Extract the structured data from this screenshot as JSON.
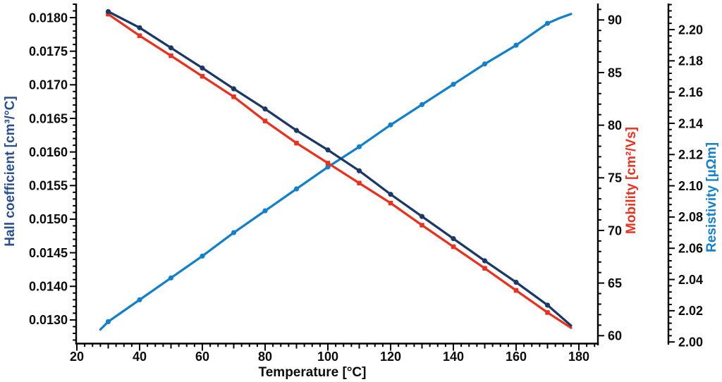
{
  "chart_data": {
    "type": "line",
    "title": "",
    "background": "#ffffff",
    "x_axis": {
      "title": "Temperature [°C]",
      "tick_labels": [
        "20",
        "40",
        "60",
        "80",
        "100",
        "120",
        "140",
        "160",
        "180"
      ],
      "range": [
        20,
        185.5
      ],
      "major_step": 20,
      "medium_step": 10,
      "minor_step": 2.5,
      "grid": "off"
    },
    "axes": {
      "hall": {
        "title": "Hall coefficient [cm³/°C]",
        "side": "left",
        "title_color": "#2b4f8e",
        "tick_labels": [
          "0.0180",
          "0.0175",
          "0.0170",
          "0.0165",
          "0.0160",
          "0.0155",
          "0.0150",
          "0.0145",
          "0.0140",
          "0.0130"
        ]
      },
      "mobility": {
        "title": "Mobility [cm²/Vs]",
        "side": "right-inner",
        "title_color": "#e53322",
        "tick_labels": [
          "90",
          "85",
          "80",
          "75",
          "70",
          "65",
          "60"
        ]
      },
      "resistivity": {
        "title": "Resistivity [µΩm]",
        "side": "right-outer",
        "title_color": "#1480c8",
        "tick_labels": [
          "2.20",
          "2.18",
          "2.16",
          "2.14",
          "2.12",
          "2.10",
          "2.08",
          "2.06",
          "2.04",
          "2.02",
          "2.00"
        ]
      }
    },
    "series": [
      {
        "name": "Resistivity",
        "axis": "resistivity",
        "color": "#1480c8",
        "marker": "circle",
        "line_points": [
          [
            27.5,
            2.008
          ],
          [
            30,
            2.013
          ],
          [
            40,
            2.027
          ],
          [
            50,
            2.041
          ],
          [
            60,
            2.055
          ],
          [
            70,
            2.07
          ],
          [
            80,
            2.084
          ],
          [
            90,
            2.098
          ],
          [
            100,
            2.112
          ],
          [
            110,
            2.125
          ],
          [
            120,
            2.139
          ],
          [
            130,
            2.152
          ],
          [
            140,
            2.165
          ],
          [
            150,
            2.178
          ],
          [
            160,
            2.19
          ],
          [
            170,
            2.204
          ],
          [
            174,
            2.2075
          ],
          [
            177.5,
            2.21
          ]
        ],
        "marker_points": [
          [
            30,
            2.013
          ],
          [
            40,
            2.027
          ],
          [
            50,
            2.041
          ],
          [
            60,
            2.055
          ],
          [
            70,
            2.07
          ],
          [
            80,
            2.084
          ],
          [
            90,
            2.098
          ],
          [
            100,
            2.112
          ],
          [
            110,
            2.125
          ],
          [
            120,
            2.139
          ],
          [
            130,
            2.152
          ],
          [
            140,
            2.165
          ],
          [
            150,
            2.178
          ],
          [
            160,
            2.19
          ],
          [
            170,
            2.204
          ]
        ]
      },
      {
        "name": "Mobility",
        "axis": "mobility",
        "color": "#e53322",
        "marker": "square",
        "line_points": [
          [
            30,
            90.55
          ],
          [
            40,
            88.5
          ],
          [
            50,
            86.6
          ],
          [
            60,
            84.65
          ],
          [
            70,
            82.7
          ],
          [
            80,
            80.4
          ],
          [
            90,
            78.3
          ],
          [
            100,
            76.4
          ],
          [
            110,
            74.5
          ],
          [
            120,
            72.6
          ],
          [
            130,
            70.5
          ],
          [
            140,
            68.45
          ],
          [
            150,
            66.4
          ],
          [
            160,
            64.3
          ],
          [
            170,
            62.2
          ],
          [
            177.5,
            60.75
          ]
        ],
        "marker_points": [
          [
            30,
            90.55
          ],
          [
            40,
            88.5
          ],
          [
            50,
            86.6
          ],
          [
            60,
            84.65
          ],
          [
            70,
            82.7
          ],
          [
            80,
            80.4
          ],
          [
            90,
            78.3
          ],
          [
            100,
            76.4
          ],
          [
            110,
            74.5
          ],
          [
            120,
            72.6
          ],
          [
            130,
            70.5
          ],
          [
            140,
            68.45
          ],
          [
            150,
            66.4
          ],
          [
            160,
            64.3
          ],
          [
            170,
            62.2
          ]
        ]
      },
      {
        "name": "Hall coefficient",
        "axis": "hall",
        "color": "#1c3966",
        "marker": "circle",
        "line_points": [
          [
            30,
            0.01809
          ],
          [
            40,
            0.01785
          ],
          [
            50,
            0.01755
          ],
          [
            60,
            0.01725
          ],
          [
            70,
            0.01694
          ],
          [
            80,
            0.01664
          ],
          [
            90,
            0.01632
          ],
          [
            100,
            0.01603
          ],
          [
            110,
            0.01572
          ],
          [
            120,
            0.01537
          ],
          [
            130,
            0.01504
          ],
          [
            140,
            0.01471
          ],
          [
            150,
            0.01438
          ],
          [
            160,
            0.01406
          ],
          [
            170,
            0.01344
          ],
          [
            177.5,
            0.01283
          ]
        ],
        "marker_points": [
          [
            30,
            0.01809
          ],
          [
            40,
            0.01785
          ],
          [
            50,
            0.01755
          ],
          [
            60,
            0.01725
          ],
          [
            70,
            0.01694
          ],
          [
            80,
            0.01664
          ],
          [
            90,
            0.01632
          ],
          [
            100,
            0.01603
          ],
          [
            110,
            0.01572
          ],
          [
            120,
            0.01537
          ],
          [
            130,
            0.01504
          ],
          [
            140,
            0.01471
          ],
          [
            150,
            0.01438
          ],
          [
            160,
            0.01406
          ],
          [
            170,
            0.01344
          ]
        ]
      }
    ]
  }
}
